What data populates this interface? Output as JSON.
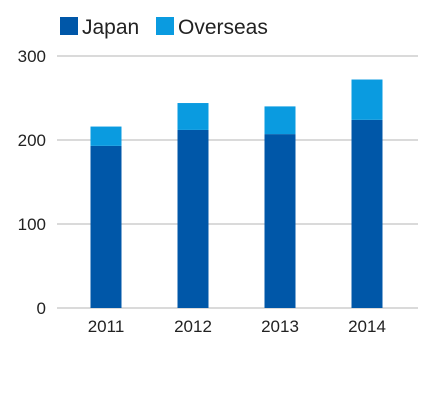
{
  "chart_data": {
    "type": "bar",
    "stacked": true,
    "categories": [
      "2011",
      "2012",
      "2013",
      "2014"
    ],
    "series": [
      {
        "name": "Japan",
        "color": "#0057a8",
        "values": [
          193,
          212,
          207,
          224
        ]
      },
      {
        "name": "Overseas",
        "color": "#0a9be0",
        "values": [
          23,
          32,
          33,
          48
        ]
      }
    ],
    "y_ticks": [
      "0",
      "100",
      "200",
      "300"
    ],
    "ylim": [
      0,
      300
    ],
    "grid": true,
    "legend_position": "top-left",
    "title": "",
    "xlabel": "",
    "ylabel": ""
  }
}
